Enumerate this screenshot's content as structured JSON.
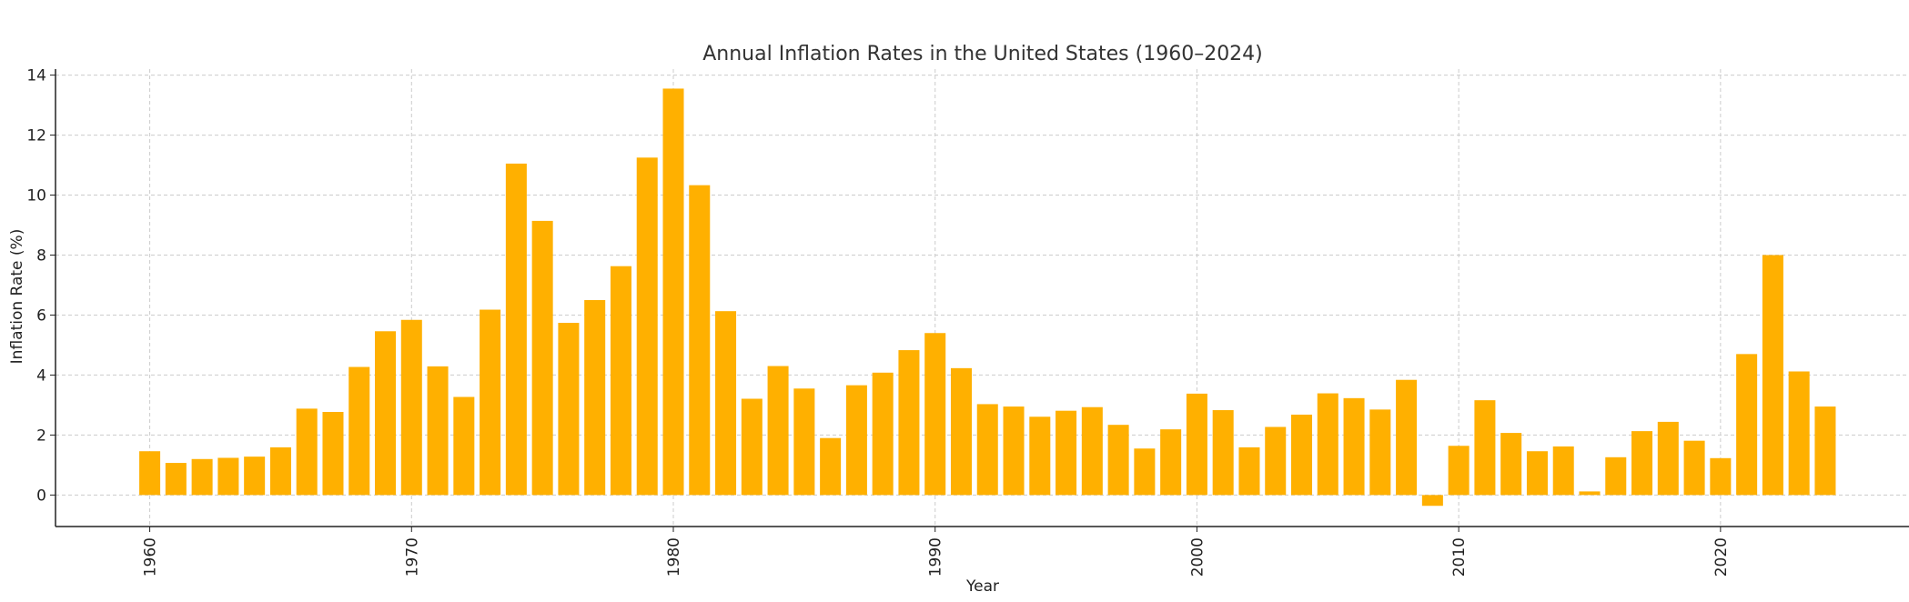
{
  "chart_data": {
    "type": "bar",
    "title": "Annual Inflation Rates in the United States (1960–2024)",
    "xlabel": "Year",
    "ylabel": "Inflation Rate (%)",
    "bar_color": "#FFB000",
    "grid": true,
    "xlim": [
      1956.4,
      2027.2
    ],
    "ylim": [
      -1.05,
      14.2
    ],
    "xticks": [
      1960,
      1970,
      1980,
      1990,
      2000,
      2010,
      2020
    ],
    "yticks": [
      0,
      2,
      4,
      6,
      8,
      10,
      12,
      14
    ],
    "x": [
      1960,
      1961,
      1962,
      1963,
      1964,
      1965,
      1966,
      1967,
      1968,
      1969,
      1970,
      1971,
      1972,
      1973,
      1974,
      1975,
      1976,
      1977,
      1978,
      1979,
      1980,
      1981,
      1982,
      1983,
      1984,
      1985,
      1986,
      1987,
      1988,
      1989,
      1990,
      1991,
      1992,
      1993,
      1994,
      1995,
      1996,
      1997,
      1998,
      1999,
      2000,
      2001,
      2002,
      2003,
      2004,
      2005,
      2006,
      2007,
      2008,
      2009,
      2010,
      2011,
      2012,
      2013,
      2014,
      2015,
      2016,
      2017,
      2018,
      2019,
      2020,
      2021,
      2022,
      2023,
      2024
    ],
    "values": [
      1.46,
      1.07,
      1.2,
      1.24,
      1.28,
      1.59,
      2.88,
      2.77,
      4.27,
      5.46,
      5.84,
      4.29,
      3.27,
      6.18,
      11.05,
      9.14,
      5.74,
      6.5,
      7.63,
      11.25,
      13.55,
      10.33,
      6.13,
      3.21,
      4.3,
      3.55,
      1.9,
      3.66,
      4.08,
      4.83,
      5.4,
      4.23,
      3.03,
      2.95,
      2.61,
      2.81,
      2.93,
      2.34,
      1.55,
      2.19,
      3.38,
      2.83,
      1.59,
      2.27,
      2.68,
      3.39,
      3.23,
      2.85,
      3.84,
      -0.36,
      1.64,
      3.16,
      2.07,
      1.46,
      1.62,
      0.12,
      1.26,
      2.13,
      2.44,
      1.81,
      1.23,
      4.7,
      8.0,
      4.12,
      2.95
    ]
  }
}
